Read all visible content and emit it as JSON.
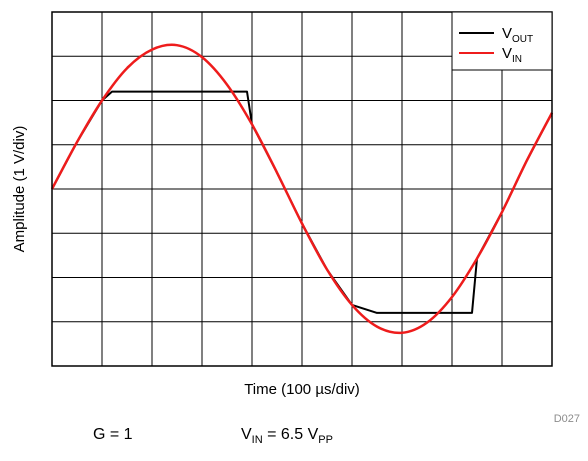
{
  "chart_data": {
    "type": "line",
    "xlabel": "Time (100 µs/div)",
    "ylabel": "Amplitude (1 V/div)",
    "grid": true,
    "x_divisions": 10,
    "y_divisions": 8,
    "legend_position": "top-right",
    "legend": [
      {
        "main": "V",
        "sub": "OUT",
        "color": "#000000"
      },
      {
        "main": "V",
        "sub": "IN",
        "color": "#ee1c1c"
      }
    ],
    "series": [
      {
        "name": "V_IN",
        "color": "#ee1c1c",
        "x_div": [
          0,
          0.5,
          1,
          1.5,
          2,
          2.5,
          3,
          3.5,
          4,
          4.5,
          5,
          5.5,
          6,
          6.5,
          7,
          7.5,
          8,
          8.5,
          9,
          9.5,
          10
        ],
        "y_div": [
          0,
          1.06,
          2.0,
          2.73,
          3.15,
          3.25,
          2.98,
          2.36,
          1.46,
          0.37,
          -0.78,
          -1.82,
          -2.62,
          -3.11,
          -3.25,
          -3.02,
          -2.44,
          -1.57,
          -0.52,
          0.65,
          1.72
        ]
      },
      {
        "name": "V_OUT",
        "color": "#000000",
        "x_div": [
          0,
          0.5,
          1,
          1.2,
          1.5,
          2,
          2.5,
          3,
          3.5,
          3.9,
          4,
          4.5,
          5,
          5.5,
          6,
          6.5,
          6.7,
          7,
          7.5,
          8,
          8.4,
          8.5,
          9,
          9.5,
          10
        ],
        "y_div": [
          0,
          1.06,
          2.0,
          2.2,
          2.2,
          2.2,
          2.2,
          2.2,
          2.2,
          2.2,
          1.46,
          0.37,
          -0.78,
          -1.82,
          -2.62,
          -2.8,
          -2.8,
          -2.8,
          -2.8,
          -2.8,
          -2.8,
          -1.57,
          -0.52,
          0.65,
          1.72
        ]
      }
    ]
  },
  "figure_id": "D027",
  "conditions": {
    "gain": "G = 1",
    "vin_main": "V",
    "vin_sub": "IN",
    "vin_eq": " = 6.5 V",
    "vin_unit_sub": "PP"
  }
}
